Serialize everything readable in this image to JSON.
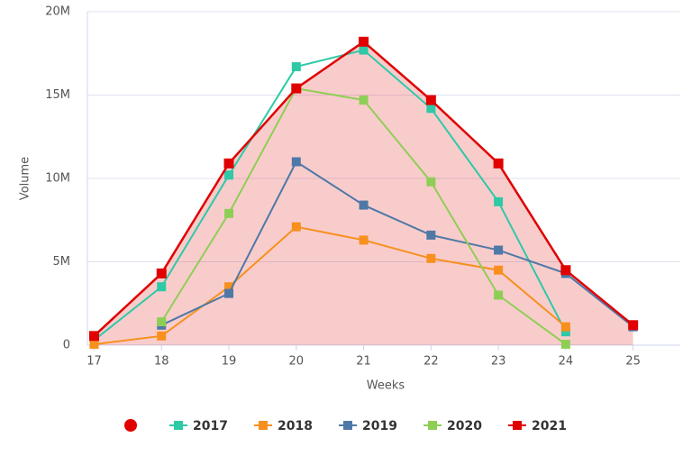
{
  "chart_data": {
    "type": "line",
    "x_label": "Weeks",
    "y_label": "Volume",
    "x": [
      17,
      18,
      19,
      20,
      21,
      22,
      23,
      24,
      25
    ],
    "xlim": [
      16.9,
      25.7
    ],
    "xticks": [
      17,
      18,
      19,
      20,
      21,
      22,
      23,
      24,
      25
    ],
    "ylim": [
      0,
      20000000
    ],
    "yticks": [
      0,
      {
        "value": 5000000,
        "label": "5M"
      },
      {
        "value": 10000000,
        "label": "10M"
      },
      {
        "value": 15000000,
        "label": "15M"
      },
      {
        "value": 20000000,
        "label": "20M"
      }
    ],
    "grid": true,
    "legend": "bottom",
    "series": [
      {
        "name": "2017",
        "color": "#2ec9a6",
        "values": [
          300000,
          3500000,
          10200000,
          16700000,
          17700000,
          14200000,
          8600000,
          800000,
          null
        ]
      },
      {
        "name": "2018",
        "color": "#f7901e",
        "values": [
          50000,
          550000,
          3500000,
          7100000,
          6300000,
          5200000,
          4500000,
          1100000,
          null
        ]
      },
      {
        "name": "2019",
        "color": "#4e79a7",
        "values": [
          null,
          1200000,
          3100000,
          11000000,
          8400000,
          6600000,
          5700000,
          4300000,
          1100000
        ]
      },
      {
        "name": "2020",
        "color": "#8fce55",
        "values": [
          null,
          1400000,
          7900000,
          15400000,
          14700000,
          9800000,
          3000000,
          50000,
          null
        ]
      },
      {
        "name": "2021",
        "color": "#e00000",
        "area": true,
        "values": [
          550000,
          4300000,
          10900000,
          15400000,
          18200000,
          14700000,
          10900000,
          4500000,
          1200000
        ]
      }
    ]
  }
}
